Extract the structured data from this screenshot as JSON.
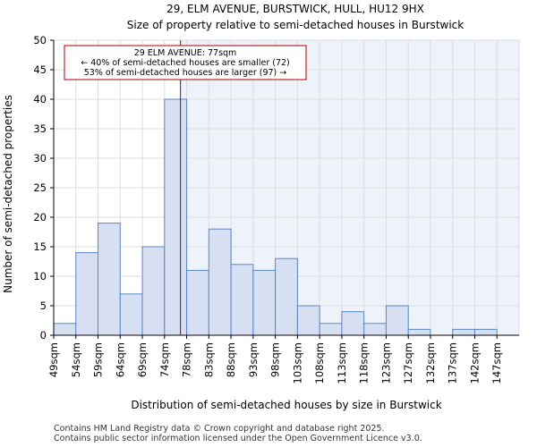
{
  "chart_data": {
    "type": "bar",
    "title": "29, ELM AVENUE, BURSTWICK, HULL, HU12 9HX",
    "subtitle": "Size of property relative to semi-detached houses in Burstwick",
    "xlabel": "Distribution of semi-detached houses by size in Burstwick",
    "ylabel": "Number of semi-detached properties",
    "categories": [
      "49sqm",
      "54sqm",
      "59sqm",
      "64sqm",
      "69sqm",
      "74sqm",
      "78sqm",
      "83sqm",
      "88sqm",
      "93sqm",
      "98sqm",
      "103sqm",
      "108sqm",
      "113sqm",
      "118sqm",
      "123sqm",
      "127sqm",
      "132sqm",
      "137sqm",
      "142sqm",
      "147sqm"
    ],
    "values": [
      2,
      14,
      19,
      7,
      15,
      40,
      11,
      18,
      12,
      11,
      13,
      5,
      2,
      4,
      2,
      5,
      1,
      0,
      1,
      1,
      0
    ],
    "ylim": [
      0,
      50
    ],
    "yticks": [
      0,
      5,
      10,
      15,
      20,
      25,
      30,
      35,
      40,
      45,
      50
    ],
    "grid": true,
    "bar_color": "#d6e0f2",
    "bar_edge_color": "#5b86c5",
    "highlight_color": "#eef2fb",
    "marker_color": "#aa0000",
    "marker_position_bin": 5.72,
    "annotation": {
      "line1": "29 ELM AVENUE: 77sqm",
      "line2": "← 40% of semi-detached houses are smaller (72)",
      "line3": "53% of semi-detached houses are larger (97) →"
    }
  },
  "footer": {
    "line1": "Contains HM Land Registry data © Crown copyright and database right 2025.",
    "line2": "Contains public sector information licensed under the Open Government Licence v3.0."
  }
}
